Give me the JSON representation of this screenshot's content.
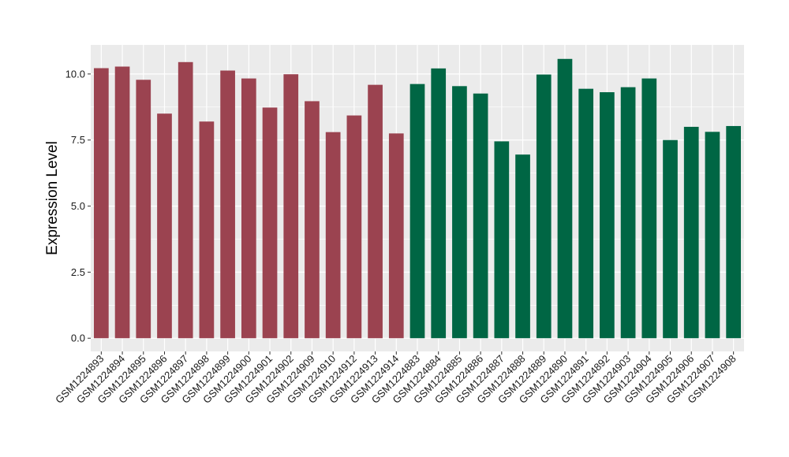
{
  "chart_data": {
    "type": "bar",
    "xlabel": "",
    "ylabel": "Expression Level",
    "ylim": [
      -0.5,
      11.1
    ],
    "yticks": [
      0.0,
      2.5,
      5.0,
      7.5,
      10.0
    ],
    "ytick_labels": [
      "0.0",
      "2.5",
      "5.0",
      "7.5",
      "10.0"
    ],
    "grid": true,
    "categories": [
      "GSM1224893",
      "GSM1224894",
      "GSM1224895",
      "GSM1224896",
      "GSM1224897",
      "GSM1224898",
      "GSM1224899",
      "GSM1224900",
      "GSM1224901",
      "GSM1224902",
      "GSM1224909",
      "GSM1224910",
      "GSM1224912",
      "GSM1224913",
      "GSM1224914",
      "GSM1224883",
      "GSM1224884",
      "GSM1224885",
      "GSM1224886",
      "GSM1224887",
      "GSM1224888",
      "GSM1224889",
      "GSM1224890",
      "GSM1224891",
      "GSM1224892",
      "GSM1224903",
      "GSM1224904",
      "GSM1224905",
      "GSM1224906",
      "GSM1224907",
      "GSM1224908"
    ],
    "values": [
      10.22,
      10.28,
      9.78,
      8.5,
      10.45,
      8.2,
      10.13,
      9.83,
      8.73,
      9.99,
      8.97,
      7.8,
      8.43,
      9.59,
      7.75,
      9.62,
      10.21,
      9.54,
      9.26,
      7.45,
      6.95,
      9.98,
      10.57,
      9.44,
      9.31,
      9.5,
      9.83,
      7.5,
      8.0,
      7.81,
      8.03
    ],
    "group_colors": [
      "#9b4350",
      "#006644"
    ],
    "bar_group": [
      0,
      0,
      0,
      0,
      0,
      0,
      0,
      0,
      0,
      0,
      0,
      0,
      0,
      0,
      0,
      1,
      1,
      1,
      1,
      1,
      1,
      1,
      1,
      1,
      1,
      1,
      1,
      1,
      1,
      1,
      1
    ],
    "panel_background": "#ebebeb",
    "gridline_color": "#ffffff"
  }
}
